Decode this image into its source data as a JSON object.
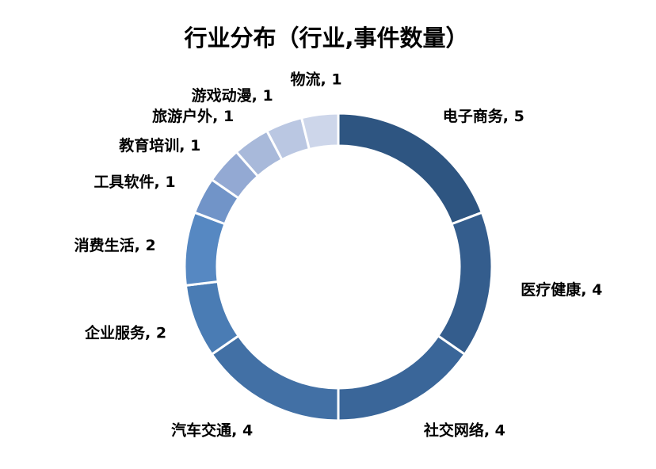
{
  "chart_data": {
    "type": "pie",
    "variant": "donut",
    "title": "行业分布（行业,事件数量）",
    "label_separator": ", ",
    "start_angle_deg": 0,
    "direction": "clockwise",
    "legend": "none",
    "slices": [
      {
        "label": "电子商务",
        "value": 5,
        "color": "#2e5581"
      },
      {
        "label": "医疗健康",
        "value": 4,
        "color": "#345d8d"
      },
      {
        "label": "社交网络",
        "value": 4,
        "color": "#3a6699"
      },
      {
        "label": "汽车交通",
        "value": 4,
        "color": "#4270a5"
      },
      {
        "label": "企业服务",
        "value": 2,
        "color": "#4a7cb4"
      },
      {
        "label": "消费生活",
        "value": 2,
        "color": "#5688c2"
      },
      {
        "label": "工具软件",
        "value": 1,
        "color": "#7194c8"
      },
      {
        "label": "教育培训",
        "value": 1,
        "color": "#93a9d3"
      },
      {
        "label": "旅游户外",
        "value": 1,
        "color": "#a8b9da"
      },
      {
        "label": "游戏动漫",
        "value": 1,
        "color": "#bac7e2"
      },
      {
        "label": "物流",
        "value": 1,
        "color": "#cdd6ea"
      }
    ]
  }
}
